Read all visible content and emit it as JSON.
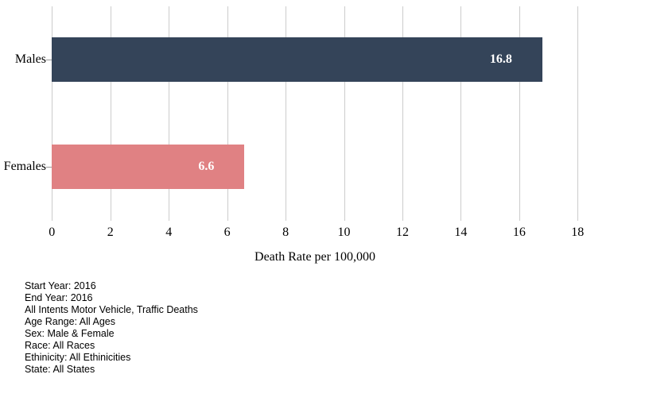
{
  "chart_data": {
    "type": "bar",
    "orientation": "horizontal",
    "categories": [
      "Males",
      "Females"
    ],
    "values": [
      16.8,
      6.6
    ],
    "value_labels": [
      "16.8",
      "6.6"
    ],
    "bar_colors": [
      "#344459",
      "#e08183"
    ],
    "value_label_color": "#ffffff",
    "xlabel": "Death Rate per 100,000",
    "ylabel": "",
    "title": "",
    "xlim": [
      0,
      18
    ],
    "xticks": [
      0,
      2,
      4,
      6,
      8,
      10,
      12,
      14,
      16,
      18
    ],
    "grid": "vertical",
    "gridline_color": "#cccccc",
    "legend": "none"
  },
  "footnotes": {
    "lines": [
      "Start Year: 2016",
      "End Year: 2016",
      "All Intents Motor Vehicle, Traffic Deaths",
      "Age Range: All Ages",
      "Sex: Male & Female",
      "Race: All Races",
      "Ethinicity: All Ethinicities",
      "State: All States"
    ]
  }
}
